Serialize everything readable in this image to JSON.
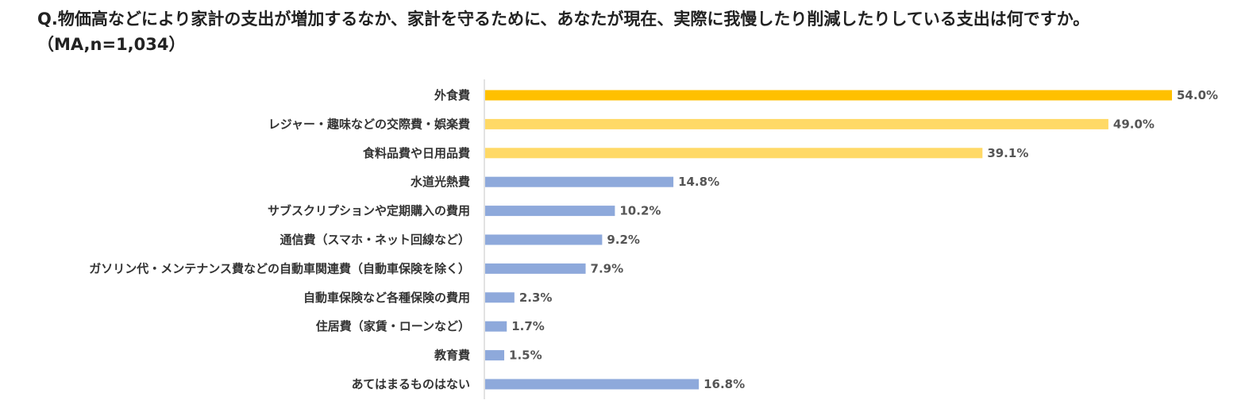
{
  "chart_data": {
    "type": "bar",
    "orientation": "horizontal",
    "title": "Q.物価高などにより家計の支出が増加するなか、家計を守るために、あなたが現在、実際に我慢したり削減したりしている支出は何ですか。",
    "subtitle": "（MA,n=1,034）",
    "categories": [
      "外食費",
      "レジャー・趣味などの交際費・娯楽費",
      "食料品費や日用品費",
      "水道光熱費",
      "サブスクリプションや定期購入の費用",
      "通信費（スマホ・ネット回線など）",
      "ガソリン代・メンテナンス費などの自動車関連費（自動車保険を除く）",
      "自動車保険など各種保険の費用",
      "住居費（家賃・ローンなど）",
      "教育費",
      "あてはまるものはない"
    ],
    "values": [
      54.0,
      49.0,
      39.1,
      14.8,
      10.2,
      9.2,
      7.9,
      2.3,
      1.7,
      1.5,
      16.8
    ],
    "value_labels": [
      "54.0%",
      "49.0%",
      "39.1%",
      "14.8%",
      "10.2%",
      "9.2%",
      "7.9%",
      "2.3%",
      "1.7%",
      "1.5%",
      "16.8%"
    ],
    "bar_colors": [
      "#FFC000",
      "#FFD966",
      "#FFD966",
      "#8EA9DB",
      "#8EA9DB",
      "#8EA9DB",
      "#8EA9DB",
      "#8EA9DB",
      "#8EA9DB",
      "#8EA9DB",
      "#8EA9DB"
    ],
    "xlim": [
      0,
      54.0
    ],
    "axis_color": "#D9D9D9",
    "grid": false,
    "legend": "none"
  }
}
